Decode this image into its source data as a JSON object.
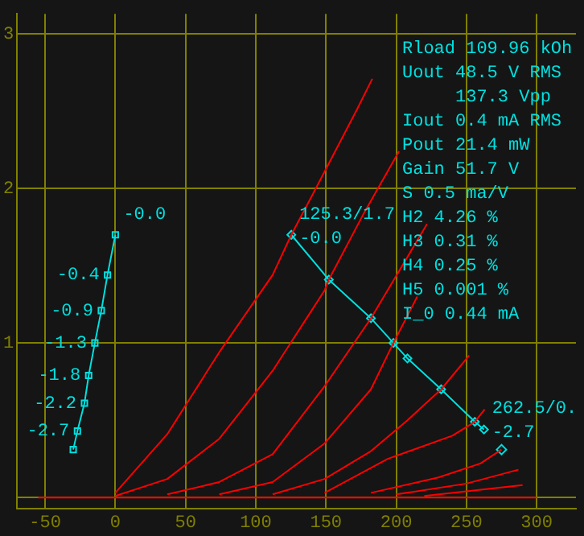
{
  "chart_data": {
    "type": "line",
    "xlim": [
      -70,
      328
    ],
    "ylim": [
      -0.07,
      3.13
    ],
    "xticks": [
      -50,
      0,
      50,
      100,
      150,
      200,
      250,
      300
    ],
    "yticks": [
      {
        "value": 0,
        "label": null
      },
      1,
      2,
      3
    ],
    "grid": true,
    "legend": false,
    "series": [
      {
        "color": "#ff0000",
        "marker": "none",
        "x": [
          0,
          37,
          74,
          112,
          125.3,
          141,
          172,
          183
        ],
        "values": [
          0.03,
          0.41,
          0.94,
          1.44,
          1.7,
          1.97,
          2.51,
          2.71
        ]
      },
      {
        "color": "#ff0000",
        "marker": "none",
        "x": [
          0,
          37,
          74,
          112,
          149,
          152,
          177,
          202
        ],
        "values": [
          0.01,
          0.12,
          0.38,
          0.82,
          1.34,
          1.41,
          1.84,
          2.24
        ]
      },
      {
        "color": "#ff0000",
        "marker": "none",
        "x": [
          37,
          74,
          112,
          149,
          182,
          222
        ],
        "values": [
          0.02,
          0.1,
          0.28,
          0.72,
          1.16,
          1.77
        ]
      },
      {
        "color": "#ff0000",
        "marker": "none",
        "x": [
          74,
          112,
          149,
          182,
          198,
          215
        ],
        "values": [
          0.02,
          0.1,
          0.35,
          0.7,
          1.0,
          1.3
        ]
      },
      {
        "color": "#ff0000",
        "marker": "none",
        "x": [
          112,
          149,
          182,
          208,
          232,
          252
        ],
        "values": [
          0.02,
          0.12,
          0.3,
          0.5,
          0.7,
          0.92
        ]
      },
      {
        "color": "#ff0000",
        "marker": "none",
        "x": [
          149,
          194,
          240,
          256,
          263
        ],
        "values": [
          0.03,
          0.25,
          0.4,
          0.49,
          0.57
        ]
      },
      {
        "color": "#ff0000",
        "marker": "none",
        "x": [
          182,
          230,
          260,
          275
        ],
        "values": [
          0.03,
          0.13,
          0.22,
          0.31
        ]
      },
      {
        "color": "#ff0000",
        "marker": "none",
        "x": [
          200,
          250,
          287
        ],
        "values": [
          0.02,
          0.09,
          0.18
        ]
      },
      {
        "color": "#ff0000",
        "marker": "none",
        "x": [
          220,
          290
        ],
        "values": [
          0.01,
          0.08
        ]
      },
      {
        "color": "#ff0000",
        "marker": "none",
        "x": [
          -55,
          300
        ],
        "values": [
          0,
          0
        ]
      },
      {
        "color": "#00e0e0",
        "marker": "diamond",
        "x": [
          125.3,
          152,
          182,
          198,
          208,
          232,
          256,
          262.5
        ],
        "values": [
          1.7,
          1.41,
          1.16,
          1.0,
          0.9,
          0.7,
          0.49,
          0.44
        ]
      },
      {
        "color": "#00e0e0",
        "type": "scatter",
        "marker": "diamond",
        "x": [
          275
        ],
        "values": [
          0.31
        ]
      },
      {
        "color": "#00e0e0",
        "marker": "square",
        "x": [
          0,
          -5.6,
          -10,
          -14.6,
          -19,
          -22,
          -27,
          -30
        ],
        "values": [
          1.7,
          1.44,
          1.21,
          1.0,
          0.79,
          0.61,
          0.43,
          0.31
        ]
      }
    ],
    "annotations": [
      "Rload 109.96 kOh",
      "Uout 48.5 V RMS",
      "     137.3 Vpp",
      "Iout 0.4 mA RMS",
      "Pout 21.4 mW",
      "Gain 51.7 V",
      "S 0.5 ma/V",
      "H2 4.26 %",
      "H3 0.31 %",
      "H4 0.25 %",
      "H5 0.001 %",
      "I_0 0.44 mA",
      {
        "text": "125.3/1.7",
        "x": 125.3,
        "y": 1.7
      },
      {
        "text": "-0.0",
        "x": 125.3,
        "y": 1.7
      },
      {
        "text": "262.5/0.",
        "x": 262.5,
        "y": 0.44
      },
      {
        "text": "-2.7",
        "x": 262.5,
        "y": 0.44
      },
      {
        "text": "-0.0",
        "x": 0,
        "y": 1.7
      },
      {
        "text": "-0.4",
        "x": -5.6,
        "y": 1.44
      },
      {
        "text": "-0.9",
        "x": -10,
        "y": 1.21
      },
      {
        "text": "-1.3",
        "x": -14.6,
        "y": 1.0
      },
      {
        "text": "-1.8",
        "x": -19,
        "y": 0.79
      },
      {
        "text": "-2.2",
        "x": -22,
        "y": 0.61
      },
      {
        "text": "-2.7",
        "x": -27,
        "y": 0.43
      }
    ]
  }
}
